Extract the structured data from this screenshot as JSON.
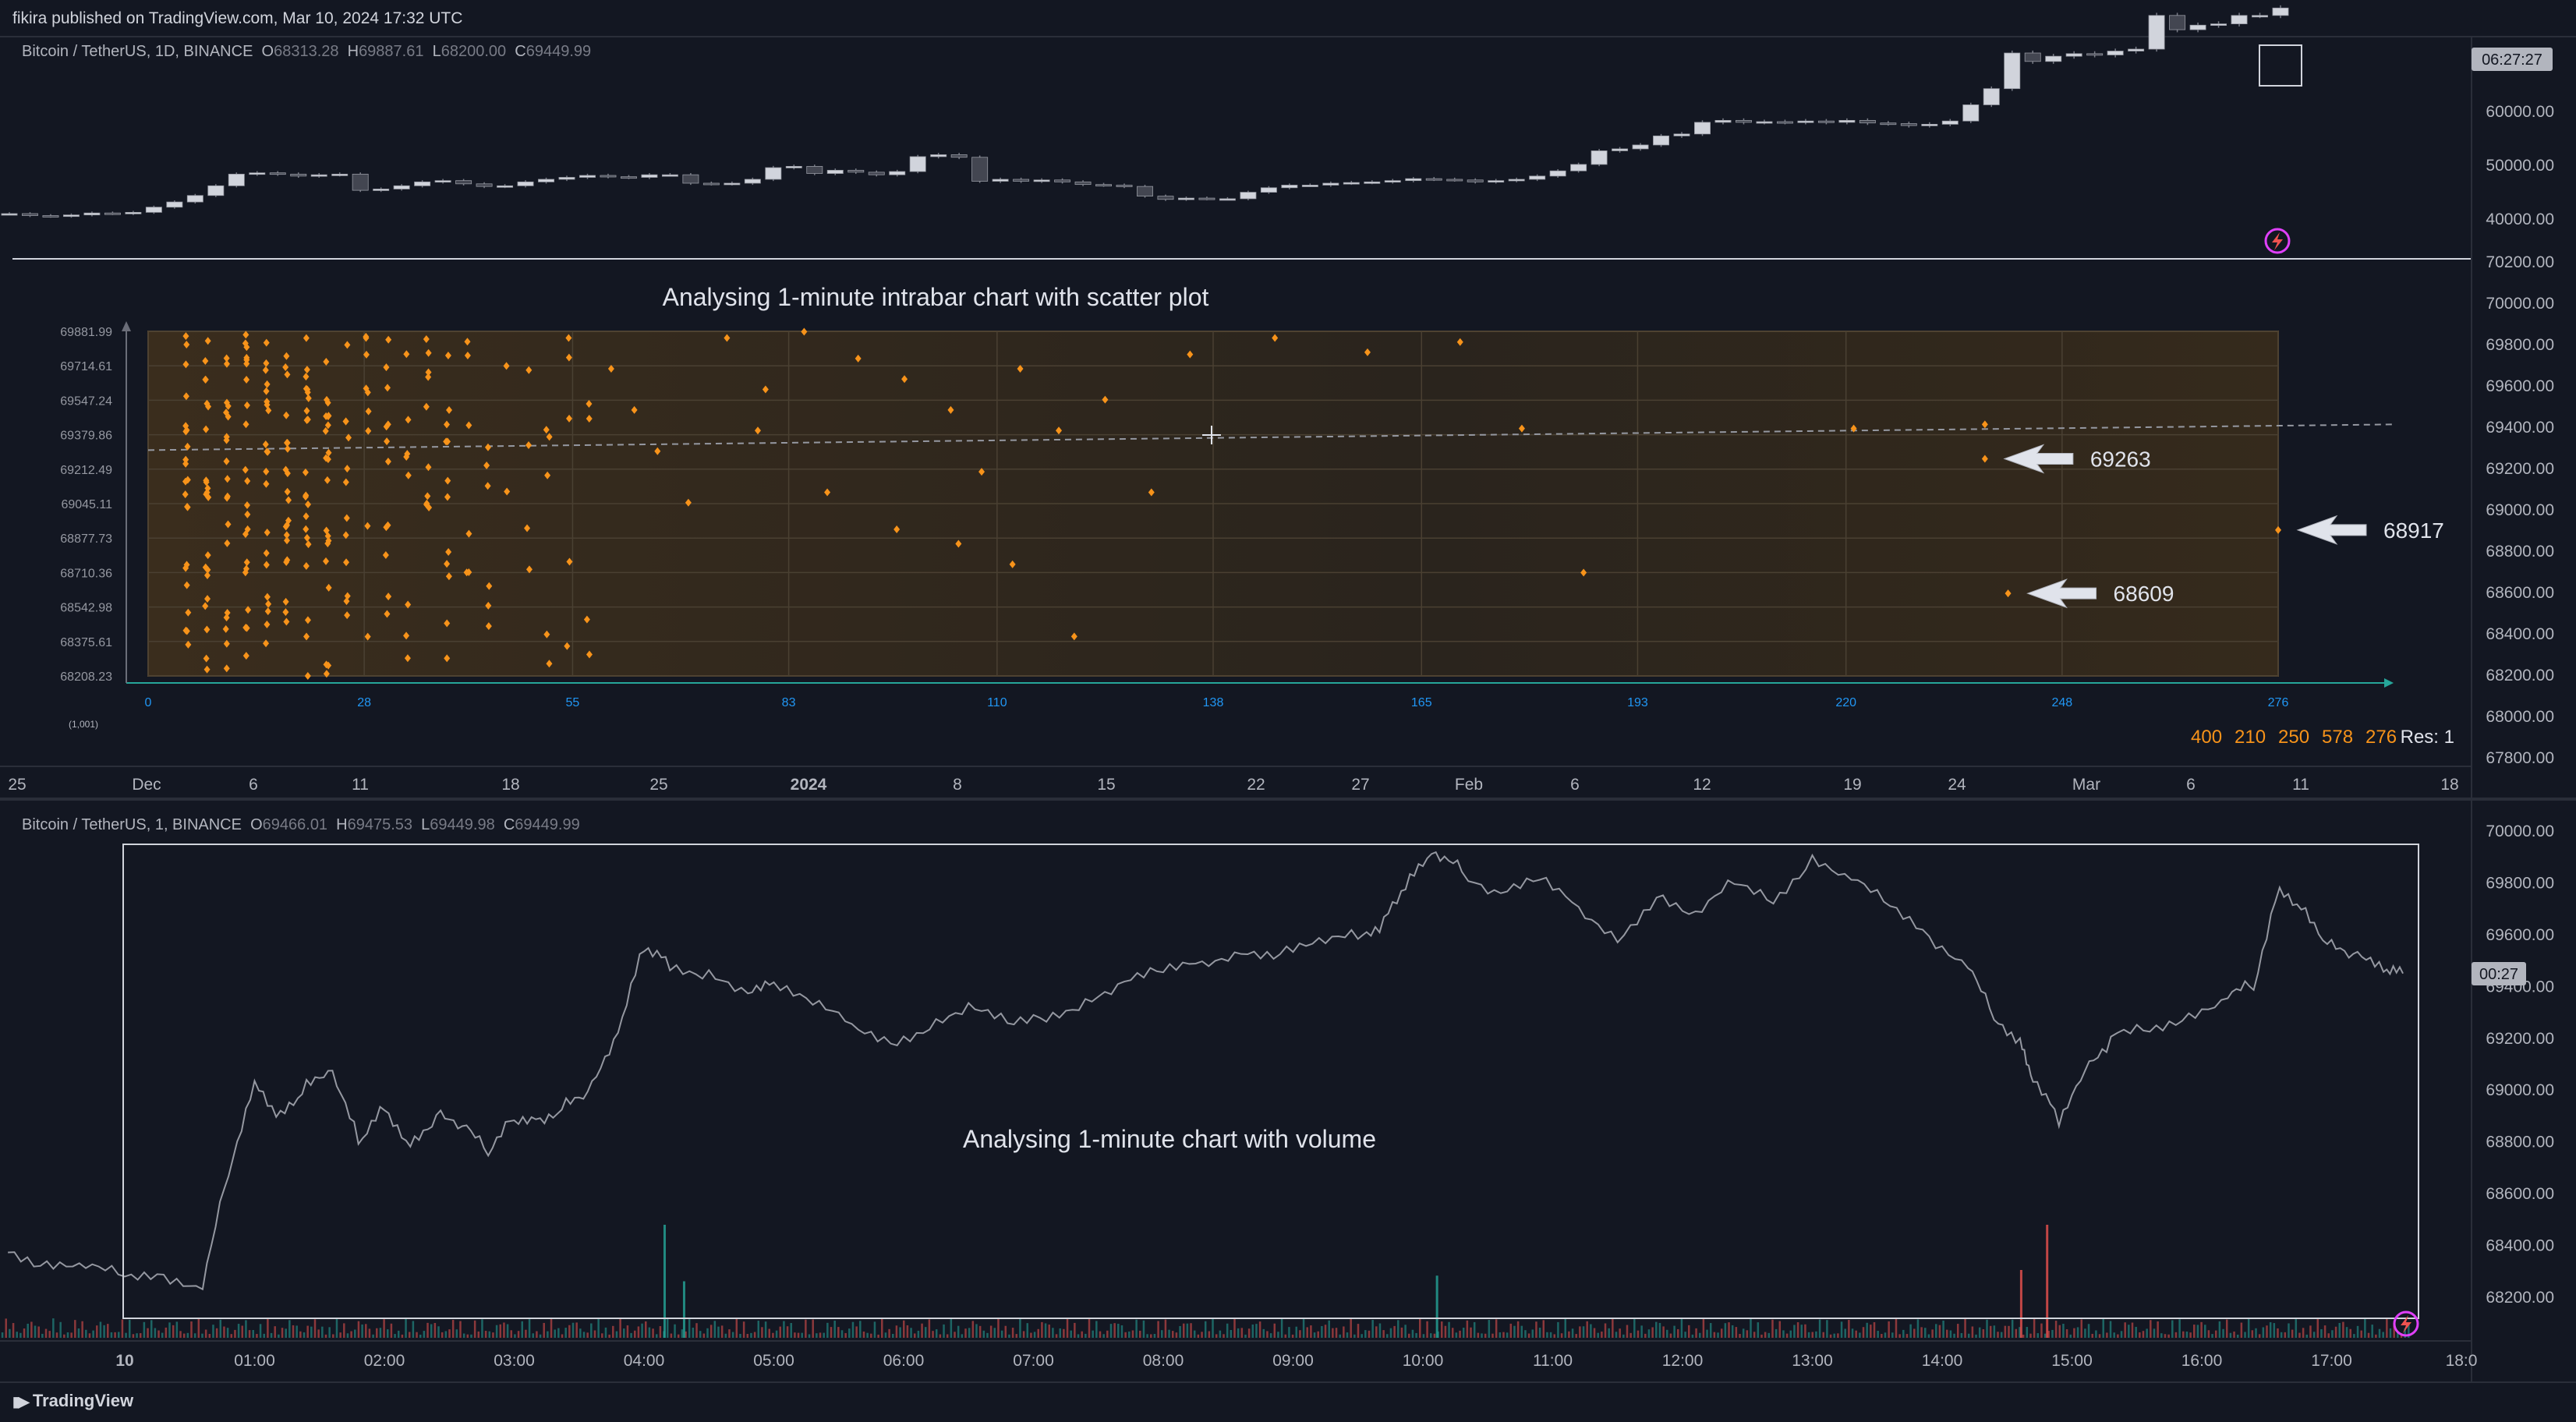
{
  "header": {
    "published": "fikira published on TradingView.com, Mar 10, 2024 17:32 UTC"
  },
  "footer": {
    "brand": "TradingView"
  },
  "colors": {
    "bg": "#131722",
    "accent_orange": "#f7931a",
    "grid": "#2a2e39",
    "teal": "#26a69a",
    "red": "#ef5350",
    "candle_up": "#d1d4dc",
    "candle_down": "#434651"
  },
  "daily_pane": {
    "legend": {
      "symbol": "Bitcoin / TetherUS, 1D, BINANCE",
      "O": "68313.28",
      "H": "69887.61",
      "L": "68200.00",
      "C": "69449.99"
    },
    "countdown": "06:27:27",
    "price_axis": [
      "70200.00",
      "70000.00",
      "69800.00",
      "69600.00",
      "69400.00",
      "69200.00",
      "69000.00",
      "68800.00",
      "68600.00",
      "68400.00",
      "68200.00",
      "68000.00",
      "67800.00"
    ],
    "candle_axis_labels": [
      "60000.00",
      "50000.00",
      "40000.00"
    ],
    "time_axis": [
      "25",
      "Dec",
      "6",
      "11",
      "18",
      "25",
      "2024",
      "8",
      "15",
      "22",
      "27",
      "Feb",
      "6",
      "12",
      "19",
      "24",
      "Mar",
      "6",
      "11",
      "18"
    ]
  },
  "chart_data": [
    {
      "type": "line",
      "description_ref": "daily close, Nov 24 2023 - Mar 10 2024 (approx)",
      "series": [
        {
          "values": [
            37700,
            37400,
            37300,
            37500,
            37800,
            37700,
            37900,
            38700,
            39500,
            40500,
            42000,
            43800,
            44000,
            43800,
            43500,
            43700,
            43800,
            41300,
            41500,
            42000,
            42600,
            42800,
            42300,
            41900,
            42000,
            42600,
            43000,
            43300,
            43600,
            43400,
            43300,
            43700,
            43700,
            42400,
            42300,
            42400,
            43000,
            44800,
            45000,
            43900,
            44400,
            44100,
            43700,
            44200,
            46500,
            46800,
            46400,
            42700,
            43000,
            42700,
            42900,
            42600,
            42200,
            42100,
            41900,
            40400,
            39900,
            40100,
            40000,
            40000,
            41000,
            41700,
            42100,
            42100,
            42400,
            42500,
            42600,
            42800,
            43100,
            43000,
            42900,
            42600,
            42800,
            43000,
            43500,
            44300,
            45300,
            47400,
            47700,
            48300,
            49700,
            50000,
            51800,
            52100,
            51800,
            51900,
            51800,
            52000,
            51800,
            52100,
            51700,
            51600,
            51300,
            51500,
            52000,
            54500,
            57000,
            62500,
            61200,
            62000,
            62400,
            62200,
            62800,
            63100,
            68300,
            66100,
            66800,
            67000,
            68300,
            68300,
            69450
          ]
        }
      ]
    },
    {
      "type": "scatter",
      "title": "Analysing 1-minute intrabar chart with scatter plot",
      "xlabel": "",
      "ylabel": "",
      "x_ticks": [
        "0",
        "28",
        "55",
        "83",
        "110",
        "138",
        "165",
        "193",
        "220",
        "248",
        "276"
      ],
      "y_ticks": [
        "69881.99",
        "69714.61",
        "69547.24",
        "69379.86",
        "69212.49",
        "69045.11",
        "68877.73",
        "68710.36",
        "68542.98",
        "68375.61",
        "68208.23"
      ],
      "corner_label": "(1,001)",
      "xlim": [
        0,
        276
      ],
      "ylim": [
        68208.23,
        69881.99
      ],
      "annotations": [
        {
          "text": "69263",
          "x": 238,
          "y": 69263
        },
        {
          "text": "68917",
          "x": 276,
          "y": 68917
        },
        {
          "text": "68609",
          "x": 241,
          "y": 68609
        }
      ],
      "counts": [
        "400",
        "210",
        "250",
        "578",
        "276"
      ],
      "res_label": "Res: 1",
      "trend_line": {
        "x": [
          0,
          276
        ],
        "y": [
          69305,
          69415
        ]
      }
    },
    {
      "type": "line",
      "title": "Analysing 1-minute chart with volume",
      "legend": {
        "symbol": "Bitcoin / TetherUS, 1, BINANCE",
        "O": "69466.01",
        "H": "69475.53",
        "L": "69449.98",
        "C": "69449.99"
      },
      "countdown": "00:27",
      "price_axis": [
        "70000.00",
        "69800.00",
        "69600.00",
        "69400.00",
        "69200.00",
        "69000.00",
        "68800.00",
        "68600.00",
        "68400.00",
        "68200.00"
      ],
      "time_axis": [
        "10",
        "01:00",
        "02:00",
        "03:00",
        "04:00",
        "05:00",
        "06:00",
        "07:00",
        "08:00",
        "09:00",
        "10:00",
        "11:00",
        "12:00",
        "13:00",
        "14:00",
        "15:00",
        "16:00",
        "17:00",
        "18:0"
      ],
      "x_hours": [
        -0.9,
        -0.6,
        -0.3,
        0,
        0.3,
        0.6,
        0.8,
        1.0,
        1.2,
        1.4,
        1.6,
        1.8,
        2.0,
        2.2,
        2.4,
        2.6,
        2.8,
        3.0,
        3.2,
        3.4,
        3.6,
        3.8,
        4.0,
        4.2,
        4.5,
        4.8,
        5.0,
        5.3,
        5.6,
        5.9,
        6.2,
        6.5,
        6.8,
        7.1,
        7.4,
        7.7,
        8.0,
        8.3,
        8.6,
        8.9,
        9.2,
        9.5,
        9.7,
        9.9,
        10.1,
        10.3,
        10.6,
        10.9,
        11.2,
        11.5,
        11.8,
        12.1,
        12.4,
        12.7,
        13.0,
        13.3,
        13.6,
        13.9,
        14.2,
        14.4,
        14.6,
        14.7,
        14.9,
        15.1,
        15.3,
        15.6,
        15.9,
        16.2,
        16.4,
        16.6,
        16.8,
        17.0,
        17.2,
        17.4,
        17.55
      ],
      "y_values": [
        68400,
        68320,
        68300,
        68280,
        68300,
        68250,
        68700,
        69050,
        68900,
        69000,
        69050,
        68800,
        68950,
        68800,
        68900,
        68850,
        68750,
        68900,
        68900,
        68950,
        69000,
        69200,
        69550,
        69500,
        69450,
        69350,
        69400,
        69320,
        69250,
        69200,
        69250,
        69300,
        69250,
        69300,
        69350,
        69400,
        69450,
        69500,
        69550,
        69520,
        69550,
        69600,
        69650,
        69800,
        69900,
        69850,
        69750,
        69800,
        69700,
        69600,
        69750,
        69650,
        69800,
        69750,
        69900,
        69800,
        69700,
        69600,
        69500,
        69300,
        69200,
        69050,
        68900,
        69100,
        69200,
        69250,
        69300,
        69350,
        69400,
        69800,
        69700,
        69550,
        69500,
        69450,
        69450
      ],
      "volume_spikes": [
        {
          "x": 4.15,
          "v": 1.0
        },
        {
          "x": 10.1,
          "v": 0.55
        },
        {
          "x": 14.8,
          "v": 1.0
        },
        {
          "x": 14.6,
          "v": 0.6
        },
        {
          "x": 4.3,
          "v": 0.5
        }
      ]
    }
  ]
}
